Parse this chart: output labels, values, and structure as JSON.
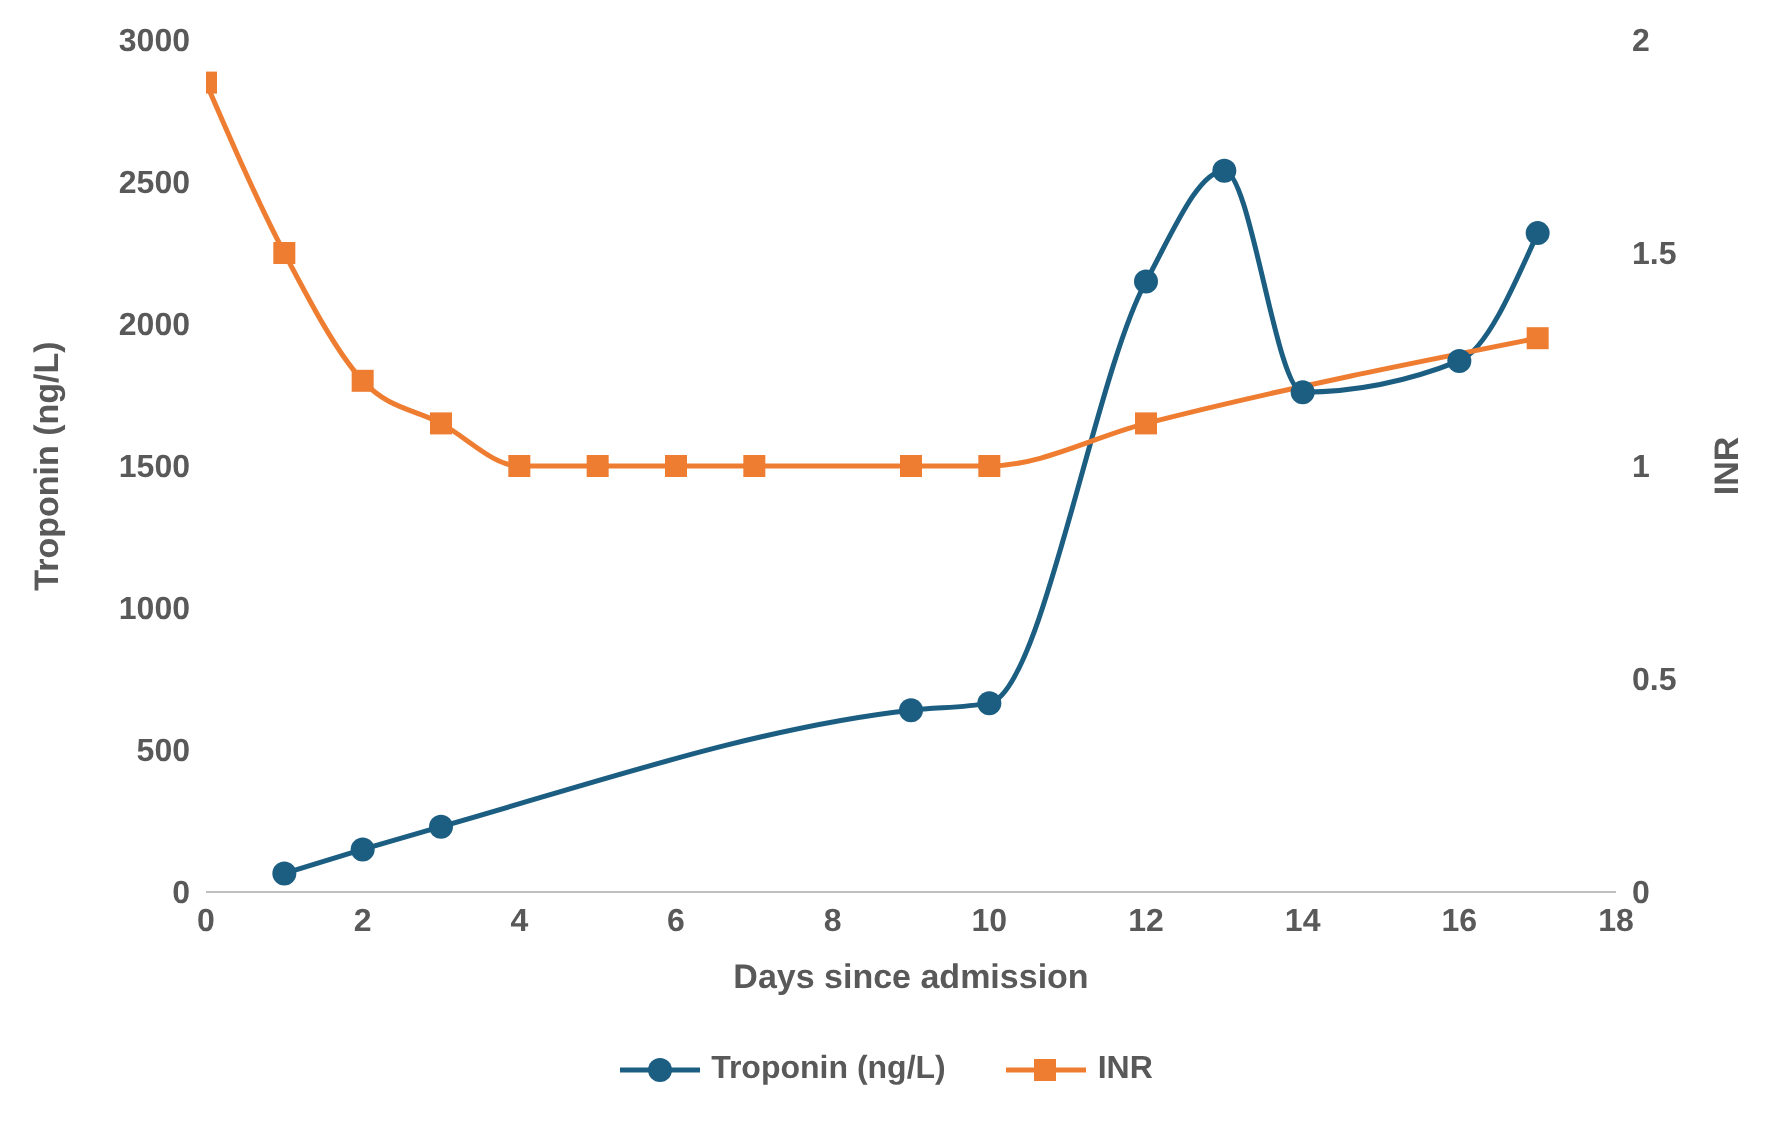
{
  "chart_data": {
    "type": "line",
    "xlabel": "Days since admission",
    "ylabel": "Troponin (ng/L)",
    "y2label": "INR",
    "xlim": [
      0,
      18
    ],
    "xticks": [
      0,
      2,
      4,
      6,
      8,
      10,
      12,
      14,
      16,
      18
    ],
    "ylim": [
      0,
      3000
    ],
    "yticks": [
      0,
      500,
      1000,
      1500,
      2000,
      2500,
      3000
    ],
    "y2lim": [
      0,
      2
    ],
    "y2ticks": [
      0,
      0.5,
      1,
      1.5,
      2
    ],
    "legend": "bottom",
    "series": [
      {
        "name": "Troponin (ng/L)",
        "color": "#1b5e82",
        "marker": "circle",
        "x": [
          1,
          2,
          3,
          9,
          10,
          12,
          13,
          14,
          16,
          17
        ],
        "values": [
          65,
          150,
          230,
          640,
          665,
          2150,
          2540,
          1760,
          1870,
          2320
        ]
      },
      {
        "name": "INR",
        "color": "#ee7d31",
        "marker": "square",
        "axis": "y2",
        "x": [
          0,
          1,
          2,
          3,
          4,
          5,
          6,
          7,
          9,
          10,
          12,
          17
        ],
        "values": [
          1.9,
          1.5,
          1.2,
          1.1,
          1.0,
          1.0,
          1.0,
          1.0,
          1.0,
          1.0,
          1.1,
          1.3
        ]
      }
    ]
  }
}
